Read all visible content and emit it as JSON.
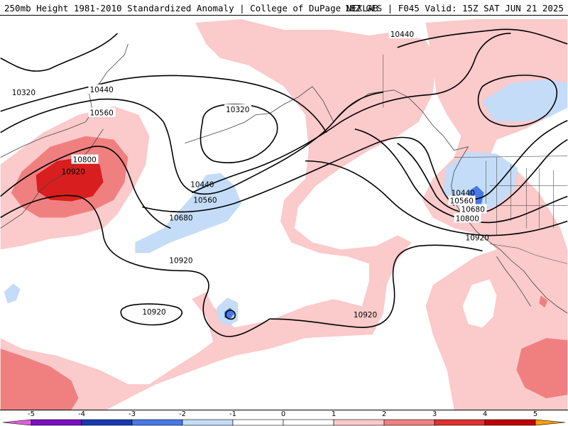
{
  "header": {
    "left_text": "250mb Height 1981-2010 Standardized Anomaly | College of DuPage NEXLAB",
    "right_text": "18Z GFS | F045 Valid: 15Z SAT JUN 21 2025"
  },
  "map": {
    "contour_labels": [
      "10320",
      "10440",
      "10560",
      "10800",
      "10920",
      "10320",
      "10440",
      "10560",
      "10680",
      "10920",
      "10920",
      "10920",
      "10440",
      "10440",
      "10560",
      "10680",
      "10800",
      "10920"
    ]
  },
  "colorbar": {
    "ticks": [
      "-5",
      "-4",
      "-3",
      "-2",
      "-1",
      "0",
      "1",
      "2",
      "3",
      "4",
      "5"
    ],
    "colors": {
      "neg5": "#e060e0",
      "neg4": "#7a10c0",
      "neg3": "#1838b0",
      "neg2": "#4878e8",
      "neg1": "#c4dcf7",
      "zero": "#ffffff",
      "pos1": "#fbcaca",
      "pos2": "#f08080",
      "pos3": "#e03030",
      "pos4": "#c00000",
      "pos5": "#ffa000"
    }
  }
}
